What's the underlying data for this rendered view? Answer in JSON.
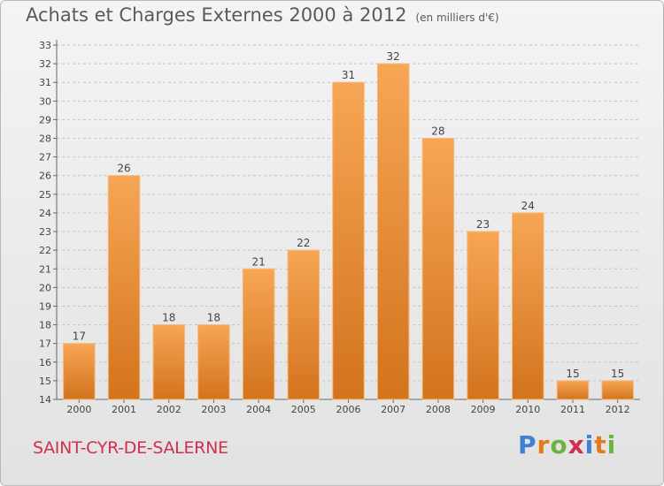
{
  "title": {
    "main": "Achats et Charges Externes 2000 à 2012",
    "unit": "(en milliers d'€)"
  },
  "commune": "SAINT-CYR-DE-SALERNE",
  "logo": {
    "letters": [
      {
        "char": "P",
        "color": "#3f7fd4"
      },
      {
        "char": "r",
        "color": "#e07a1c"
      },
      {
        "char": "o",
        "color": "#6cb43f"
      },
      {
        "char": "x",
        "color": "#d0304e"
      },
      {
        "char": "i",
        "color": "#3f7fd4"
      },
      {
        "char": "t",
        "color": "#e07a1c"
      },
      {
        "char": "i",
        "color": "#6cb43f"
      }
    ]
  },
  "chart_data": {
    "type": "bar",
    "categories": [
      "2000",
      "2001",
      "2002",
      "2003",
      "2004",
      "2005",
      "2006",
      "2007",
      "2008",
      "2009",
      "2010",
      "2011",
      "2012"
    ],
    "values": [
      17,
      26,
      18,
      18,
      21,
      22,
      31,
      32,
      28,
      23,
      24,
      15,
      15
    ],
    "ylim": [
      14,
      33
    ],
    "yticks": [
      14,
      15,
      16,
      17,
      18,
      19,
      20,
      21,
      22,
      23,
      24,
      25,
      26,
      27,
      28,
      29,
      30,
      31,
      32,
      33
    ],
    "grid": true,
    "bar_color": "#f0913a"
  }
}
